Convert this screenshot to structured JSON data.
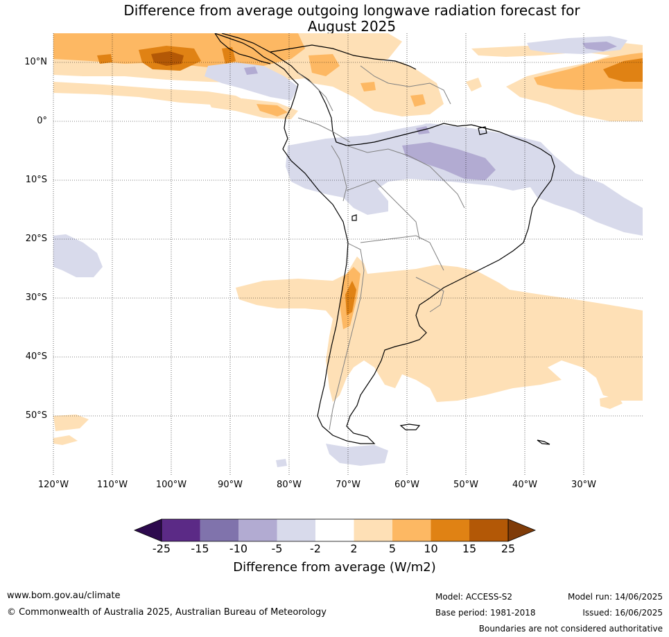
{
  "title": {
    "line1": "Difference from average outgoing longwave radiation forecast for",
    "line2": "August 2025"
  },
  "lat_labels": [
    "10°N",
    "0°",
    "10°S",
    "20°S",
    "30°S",
    "40°S",
    "50°S"
  ],
  "lon_labels": [
    "120°W",
    "110°W",
    "100°W",
    "90°W",
    "80°W",
    "70°W",
    "60°W",
    "50°W",
    "40°W",
    "30°W"
  ],
  "colorbar": {
    "ticks": [
      "-25",
      "-15",
      "-10",
      "-5",
      "-2",
      "2",
      "5",
      "10",
      "15",
      "25"
    ],
    "colors": [
      "#2d0a4e",
      "#5b2a86",
      "#8073ac",
      "#b2abd2",
      "#d8daeb",
      "#ffffff",
      "#fee0b6",
      "#fdb863",
      "#e08214",
      "#b35806",
      "#7f3b08"
    ],
    "label": "Difference from average (W/m2)"
  },
  "footer": {
    "website": "www.bom.gov.au/climate",
    "copyright": "© Commonwealth of Australia 2025, Australian Bureau of Meteorology",
    "model": "Model: ACCESS-S2",
    "base_period": "Base period: 1981-2018",
    "model_run": "Model run: 14/06/2025",
    "issued": "Issued: 16/06/2025",
    "disclaimer": "Boundaries are not considered authoritative"
  }
}
